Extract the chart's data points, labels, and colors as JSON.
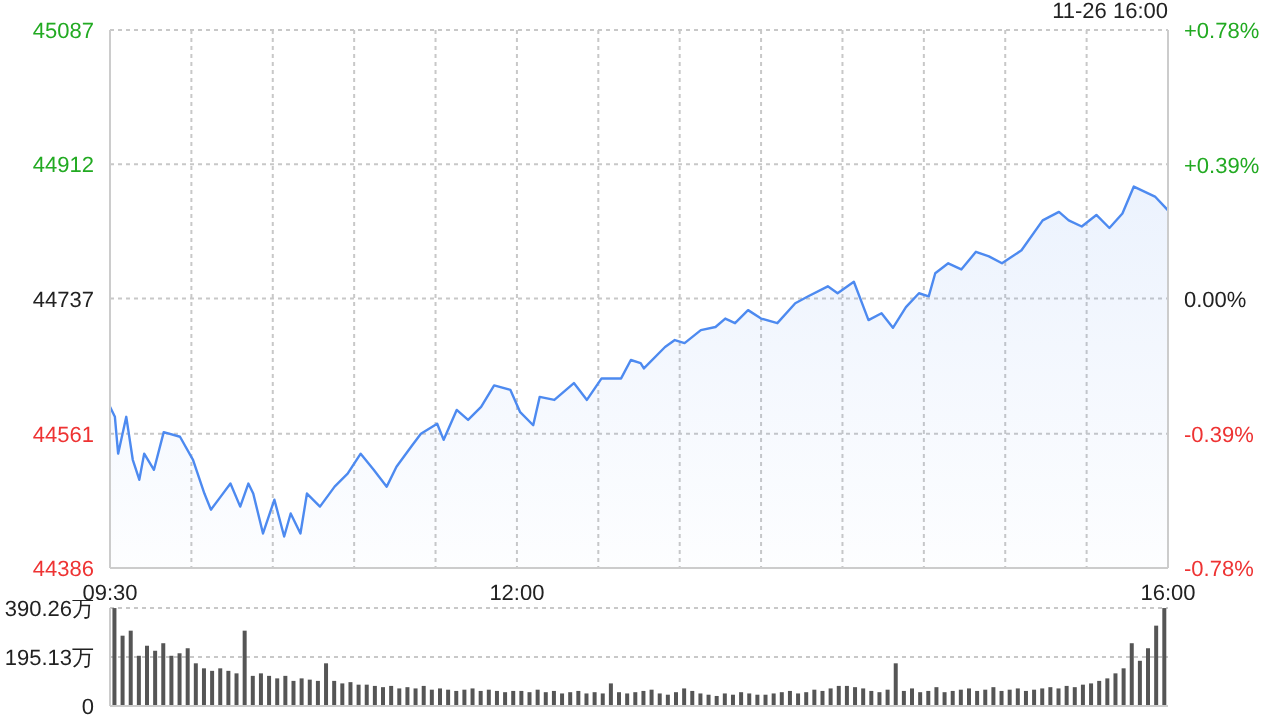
{
  "chart_data": [
    {
      "type": "area",
      "annotations": [
        "11-26 16:00"
      ],
      "x": [
        9.5,
        9.53,
        9.55,
        9.6,
        9.64,
        9.68,
        9.71,
        9.77,
        9.83,
        9.93,
        10.01,
        10.08,
        10.12,
        10.18,
        10.24,
        10.3,
        10.35,
        10.38,
        10.44,
        10.51,
        10.57,
        10.61,
        10.67,
        10.71,
        10.79,
        10.88,
        10.96,
        11.04,
        11.12,
        11.2,
        11.26,
        11.35,
        11.41,
        11.51,
        11.55,
        11.63,
        11.7,
        11.78,
        11.86,
        11.96,
        12.02,
        12.1,
        12.14,
        12.23,
        12.35,
        12.43,
        12.52,
        12.64,
        12.7,
        12.76,
        12.78,
        12.91,
        12.97,
        13.03,
        13.13,
        13.22,
        13.28,
        13.34,
        13.42,
        13.5,
        13.6,
        13.71,
        13.79,
        13.91,
        13.97,
        14.07,
        14.16,
        14.24,
        14.31,
        14.39,
        14.47,
        14.53,
        14.57,
        14.65,
        14.73,
        14.82,
        14.9,
        14.98,
        15.1,
        15.23,
        15.33,
        15.39,
        15.47,
        15.56,
        15.64,
        15.72,
        15.79,
        15.92,
        16
      ],
      "series": [
        {
          "color": "#4d8af0",
          "values": [
            44596,
            44583,
            44535,
            44583,
            44527,
            44501,
            44535,
            44514,
            44563,
            44557,
            44527,
            44483,
            44462,
            44479,
            44496,
            44466,
            44496,
            44483,
            44431,
            44475,
            44427,
            44457,
            44431,
            44483,
            44466,
            44492,
            44509,
            44535,
            44514,
            44492,
            44518,
            44544,
            44561,
            44574,
            44553,
            44592,
            44579,
            44596,
            44624,
            44618,
            44589,
            44572,
            44609,
            44605,
            44627,
            44605,
            44633,
            44633,
            44657,
            44653,
            44646,
            44674,
            44683,
            44679,
            44696,
            44700,
            44711,
            44705,
            44722,
            44711,
            44705,
            44731,
            44740,
            44753,
            44744,
            44759,
            44709,
            44718,
            44699,
            44726,
            44744,
            44740,
            44770,
            44783,
            44775,
            44798,
            44792,
            44783,
            44800,
            44839,
            44850,
            44839,
            44831,
            44846,
            44829,
            44848,
            44883,
            44870,
            44852
          ]
        }
      ],
      "xlim": [
        9.5,
        16
      ],
      "xticks": [
        {
          "value": 9.5,
          "label": "09:30"
        },
        {
          "value": 10,
          "label": null
        },
        {
          "value": 10.5,
          "label": null
        },
        {
          "value": 11,
          "label": null
        },
        {
          "value": 11.5,
          "label": null
        },
        {
          "value": 12,
          "label": "12:00"
        },
        {
          "value": 12.5,
          "label": null
        },
        {
          "value": 13,
          "label": null
        },
        {
          "value": 13.5,
          "label": null
        },
        {
          "value": 14,
          "label": null
        },
        {
          "value": 14.5,
          "label": null
        },
        {
          "value": 15,
          "label": null
        },
        {
          "value": 15.5,
          "label": null
        },
        {
          "value": 16,
          "label": "16:00"
        }
      ],
      "ylim": [
        44386,
        45087
      ],
      "yticks": [
        44386,
        44561,
        44737,
        44912,
        45087
      ],
      "y2lim": [
        -0.78,
        0.78
      ],
      "y2ticks": [
        {
          "value": -0.78,
          "label": "-0.78%"
        },
        {
          "value": -0.39,
          "label": "-0.39%"
        },
        {
          "value": 0,
          "label": "0.00%"
        },
        {
          "value": 0.39,
          "label": "+0.39%"
        },
        {
          "value": 0.78,
          "label": "+0.78%"
        }
      ],
      "grid": true
    },
    {
      "type": "bar",
      "categories": [
        null,
        null,
        null,
        null,
        null,
        null,
        null,
        null,
        null,
        null,
        null,
        null,
        null,
        null,
        null,
        null,
        null,
        null,
        null,
        null,
        null,
        null,
        null,
        null,
        null,
        null,
        null,
        null,
        null,
        null,
        null,
        null,
        null,
        null,
        null,
        null,
        null,
        null,
        null,
        null,
        null,
        null,
        null,
        null,
        null,
        null,
        null,
        null,
        null,
        null,
        null,
        null,
        null,
        null,
        null,
        null,
        null,
        null,
        null,
        null,
        null,
        null,
        null,
        null,
        null,
        null,
        null,
        null,
        null,
        null,
        null,
        null,
        null,
        null,
        null,
        null,
        null,
        null,
        null,
        null,
        null,
        null,
        null,
        null,
        null,
        null,
        null,
        null,
        null,
        null,
        null,
        null,
        null,
        null,
        null,
        null,
        null,
        null,
        null,
        null,
        null,
        null,
        null,
        null,
        null,
        null,
        null,
        null,
        null,
        null,
        null,
        null,
        null,
        null,
        null,
        null,
        null,
        null,
        null,
        null,
        null,
        null,
        null,
        null,
        null,
        null,
        null,
        null,
        null,
        null
      ],
      "series": [
        {
          "color": "#555555",
          "values": [
            390,
            280,
            300,
            200,
            240,
            220,
            250,
            200,
            210,
            230,
            170,
            150,
            140,
            150,
            140,
            130,
            300,
            120,
            130,
            120,
            110,
            120,
            100,
            110,
            105,
            100,
            170,
            100,
            90,
            95,
            85,
            85,
            80,
            75,
            80,
            70,
            75,
            70,
            80,
            65,
            70,
            65,
            60,
            65,
            70,
            60,
            65,
            60,
            55,
            60,
            60,
            55,
            65,
            55,
            60,
            50,
            55,
            60,
            50,
            55,
            50,
            90,
            55,
            50,
            55,
            60,
            65,
            50,
            45,
            55,
            70,
            60,
            50,
            45,
            40,
            50,
            45,
            55,
            50,
            45,
            45,
            50,
            55,
            60,
            50,
            55,
            65,
            60,
            70,
            80,
            80,
            75,
            70,
            60,
            55,
            65,
            170,
            60,
            70,
            55,
            60,
            75,
            55,
            60,
            65,
            70,
            60,
            65,
            75,
            60,
            65,
            70,
            60,
            65,
            70,
            75,
            70,
            80,
            75,
            85,
            90,
            100,
            110,
            130,
            150,
            250,
            180,
            230,
            320,
            390
          ]
        }
      ],
      "ylim": [
        0,
        390.26
      ],
      "yticks": [
        0,
        {
          "value": 195.13,
          "label": "195.13万"
        },
        {
          "value": 390.26,
          "label": "390.26万"
        }
      ],
      "grid": "y"
    }
  ]
}
